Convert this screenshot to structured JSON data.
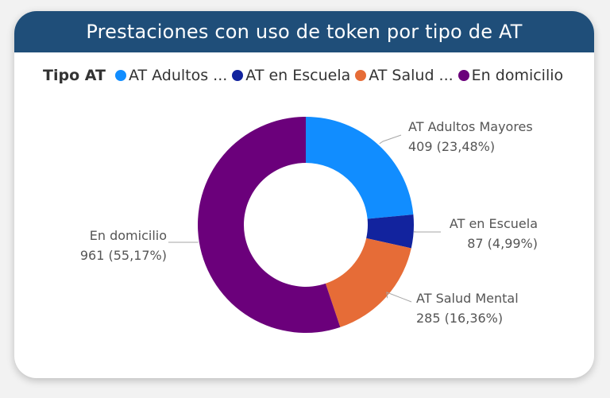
{
  "chart_data": {
    "type": "pie",
    "donut": true,
    "title": "Prestaciones con uso de token por tipo de AT",
    "legend_title": "Tipo AT",
    "legend_position": "top-left",
    "slices": [
      {
        "name": "AT Adultos Mayores",
        "legend_label": "AT Adultos ...",
        "value": 409,
        "percent_label": "23,48%",
        "display": "409 (23,48%)",
        "color": "#118dff"
      },
      {
        "name": "AT en Escuela",
        "legend_label": "AT en Escuela",
        "value": 87,
        "percent_label": "4,99%",
        "display": "87 (4,99%)",
        "color": "#12239e"
      },
      {
        "name": "AT Salud Mental",
        "legend_label": "AT Salud ...",
        "value": 285,
        "percent_label": "16,36%",
        "display": "285 (16,36%)",
        "color": "#e66c37"
      },
      {
        "name": "En domicilio",
        "legend_label": "En domicilio",
        "value": 961,
        "percent_label": "55,17%",
        "display": "961 (55,17%)",
        "color": "#6b007b"
      }
    ]
  }
}
